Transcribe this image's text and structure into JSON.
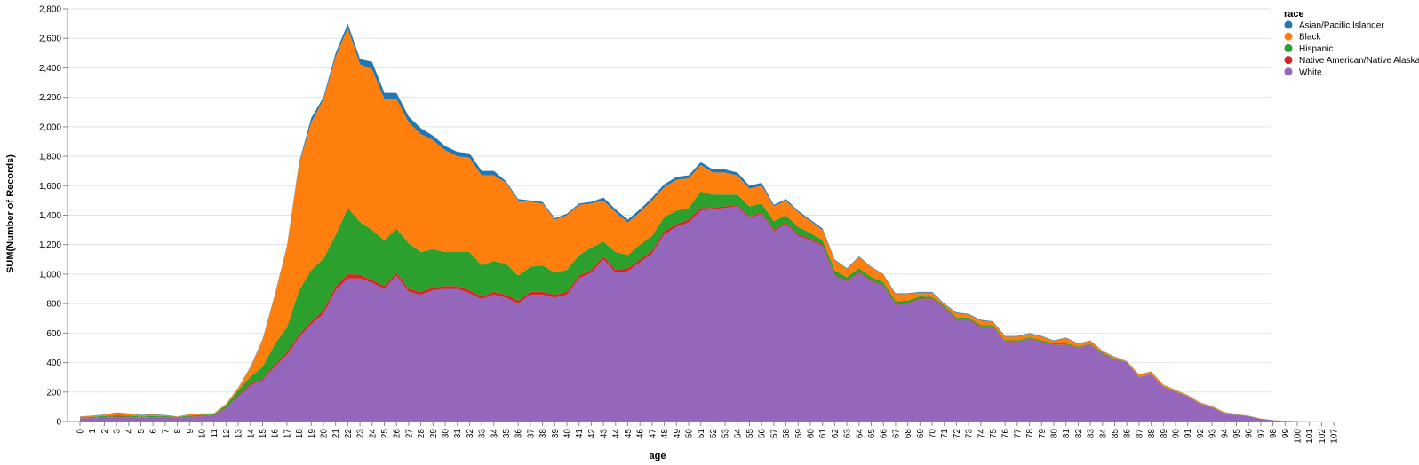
{
  "chart_data": {
    "type": "area",
    "stacked": true,
    "xlabel": "age",
    "ylabel": "SUM(Number of Records)",
    "ylim": [
      0,
      2800
    ],
    "yticks": [
      0,
      200,
      400,
      600,
      800,
      1000,
      1200,
      1400,
      1600,
      1800,
      2000,
      2200,
      2400,
      2600,
      2800
    ],
    "ytick_labels": [
      "0",
      "200",
      "400",
      "600",
      "800",
      "1,000",
      "1,200",
      "1,400",
      "1,600",
      "1,800",
      "2,000",
      "2,200",
      "2,400",
      "2,600",
      "2,800"
    ],
    "grid": true,
    "legend": {
      "title": "race",
      "placement": "top-right",
      "entries": [
        {
          "name": "Asian/Pacific Islander",
          "color": "#1f77b4"
        },
        {
          "name": "Black",
          "color": "#ff7f0e"
        },
        {
          "name": "Hispanic",
          "color": "#2ca02c"
        },
        {
          "name": "Native American/Native Alaskan",
          "color": "#d62728"
        },
        {
          "name": "White",
          "color": "#9467bd"
        }
      ]
    },
    "x": [
      "0",
      "1",
      "2",
      "3",
      "4",
      "5",
      "6",
      "7",
      "8",
      "9",
      "10",
      "11",
      "12",
      "13",
      "14",
      "15",
      "16",
      "17",
      "18",
      "19",
      "20",
      "21",
      "22",
      "23",
      "24",
      "25",
      "26",
      "27",
      "28",
      "29",
      "30",
      "31",
      "32",
      "33",
      "34",
      "35",
      "36",
      "37",
      "38",
      "39",
      "40",
      "41",
      "42",
      "43",
      "44",
      "45",
      "46",
      "47",
      "48",
      "49",
      "50",
      "51",
      "52",
      "53",
      "54",
      "55",
      "56",
      "57",
      "58",
      "59",
      "60",
      "61",
      "62",
      "63",
      "64",
      "65",
      "66",
      "67",
      "68",
      "69",
      "70",
      "71",
      "72",
      "73",
      "74",
      "75",
      "76",
      "77",
      "78",
      "79",
      "80",
      "81",
      "82",
      "83",
      "84",
      "85",
      "86",
      "87",
      "88",
      "89",
      "90",
      "91",
      "92",
      "93",
      "94",
      "95",
      "96",
      "97",
      "98",
      "99",
      "100",
      "101",
      "102",
      "107"
    ],
    "totals": [
      35,
      40,
      48,
      62,
      55,
      45,
      50,
      45,
      35,
      50,
      55,
      55,
      120,
      230,
      370,
      560,
      860,
      1190,
      1760,
      2060,
      2200,
      2500,
      2700,
      2460,
      2440,
      2230,
      2230,
      2070,
      1990,
      1940,
      1870,
      1830,
      1820,
      1700,
      1700,
      1630,
      1510,
      1500,
      1490,
      1380,
      1410,
      1480,
      1490,
      1520,
      1440,
      1370,
      1440,
      1520,
      1610,
      1660,
      1670,
      1760,
      1710,
      1710,
      1690,
      1600,
      1620,
      1470,
      1510,
      1430,
      1370,
      1310,
      1100,
      1040,
      1120,
      1050,
      1000,
      870,
      870,
      880,
      880,
      800,
      740,
      730,
      690,
      680,
      580,
      580,
      600,
      580,
      550,
      570,
      530,
      550,
      480,
      440,
      410,
      320,
      340,
      250,
      215,
      180,
      130,
      105,
      65,
      50,
      40,
      20,
      10,
      5,
      3,
      2,
      1,
      1
    ],
    "series": [
      {
        "name": "White",
        "values": [
          20,
          25,
          28,
          30,
          30,
          25,
          28,
          30,
          25,
          30,
          35,
          40,
          90,
          170,
          245,
          280,
          370,
          450,
          570,
          660,
          730,
          890,
          970,
          970,
          940,
          900,
          990,
          880,
          860,
          890,
          900,
          900,
          870,
          830,
          860,
          840,
          800,
          860,
          860,
          840,
          860,
          970,
          1010,
          1100,
          1010,
          1020,
          1080,
          1140,
          1270,
          1320,
          1350,
          1430,
          1440,
          1450,
          1460,
          1380,
          1410,
          1290,
          1340,
          1260,
          1230,
          1190,
          990,
          950,
          1010,
          950,
          920,
          790,
          800,
          830,
          830,
          770,
          690,
          690,
          640,
          640,
          540,
          540,
          560,
          540,
          520,
          520,
          500,
          520,
          460,
          420,
          400,
          300,
          320,
          235,
          200,
          170,
          120,
          95,
          55,
          45,
          35,
          18,
          8,
          4,
          2,
          1,
          1,
          1
        ]
      },
      {
        "name": "Native American/Native Alaskan",
        "values": [
          2,
          2,
          3,
          3,
          2,
          2,
          2,
          2,
          2,
          2,
          2,
          2,
          5,
          10,
          10,
          10,
          15,
          20,
          20,
          20,
          25,
          25,
          30,
          25,
          20,
          20,
          20,
          20,
          20,
          20,
          20,
          20,
          20,
          20,
          20,
          20,
          20,
          20,
          20,
          20,
          20,
          20,
          20,
          20,
          20,
          20,
          20,
          20,
          20,
          20,
          20,
          20,
          10,
          10,
          10,
          10,
          10,
          10,
          10,
          10,
          10,
          10,
          5,
          5,
          5,
          5,
          5,
          5,
          5,
          5,
          5,
          5,
          5,
          5,
          5,
          5,
          3,
          3,
          3,
          3,
          3,
          3,
          3,
          3,
          3,
          2,
          2,
          2,
          2,
          2,
          2,
          2,
          1,
          1,
          1,
          0,
          0,
          0,
          0,
          0,
          0,
          0,
          0,
          0
        ]
      },
      {
        "name": "Hispanic",
        "values": [
          5,
          5,
          7,
          10,
          8,
          7,
          7,
          6,
          4,
          8,
          8,
          6,
          15,
          30,
          50,
          80,
          140,
          170,
          300,
          350,
          350,
          350,
          450,
          360,
          340,
          310,
          300,
          310,
          270,
          260,
          230,
          230,
          260,
          210,
          210,
          210,
          170,
          170,
          180,
          150,
          150,
          140,
          150,
          100,
          120,
          90,
          100,
          100,
          100,
          90,
          80,
          110,
          90,
          80,
          70,
          70,
          60,
          60,
          50,
          50,
          40,
          30,
          30,
          25,
          25,
          25,
          20,
          20,
          15,
          15,
          10,
          10,
          10,
          10,
          10,
          10,
          8,
          8,
          8,
          8,
          8,
          8,
          5,
          5,
          5,
          5,
          2,
          2,
          2,
          2,
          2,
          2,
          2,
          2,
          2,
          2,
          2,
          1,
          1,
          0,
          0,
          0,
          0,
          0
        ]
      },
      {
        "name": "Black",
        "values": [
          6,
          6,
          8,
          15,
          12,
          8,
          10,
          5,
          3,
          8,
          8,
          5,
          8,
          18,
          60,
          185,
          330,
          545,
          860,
          1000,
          1080,
          1210,
          1220,
          1070,
          1090,
          960,
          880,
          820,
          800,
          740,
          690,
          650,
          640,
          610,
          580,
          550,
          510,
          440,
          420,
          360,
          370,
          340,
          300,
          280,
          270,
          220,
          220,
          240,
          200,
          210,
          200,
          180,
          150,
          150,
          130,
          120,
          120,
          100,
          100,
          100,
          80,
          70,
          70,
          55,
          75,
          65,
          50,
          50,
          45,
          25,
          30,
          10,
          30,
          20,
          30,
          20,
          25,
          25,
          25,
          25,
          15,
          35,
          20,
          20,
          10,
          10,
          5,
          15,
          15,
          10,
          10,
          5,
          6,
          6,
          6,
          2,
          2,
          1,
          1,
          1,
          1,
          1,
          0,
          0
        ]
      },
      {
        "name": "Asian/Pacific Islander",
        "values": [
          2,
          2,
          2,
          4,
          3,
          3,
          3,
          2,
          1,
          2,
          2,
          2,
          2,
          2,
          5,
          5,
          5,
          5,
          10,
          30,
          15,
          25,
          30,
          35,
          50,
          40,
          40,
          40,
          40,
          30,
          30,
          30,
          30,
          30,
          30,
          10,
          10,
          10,
          10,
          10,
          10,
          10,
          10,
          20,
          20,
          20,
          20,
          20,
          20,
          20,
          20,
          20,
          20,
          20,
          20,
          20,
          20,
          10,
          10,
          10,
          10,
          10,
          5,
          5,
          5,
          5,
          3,
          5,
          5,
          5,
          5,
          5,
          5,
          5,
          5,
          5,
          4,
          4,
          4,
          4,
          4,
          4,
          2,
          2,
          2,
          3,
          1,
          1,
          1,
          1,
          1,
          1,
          1,
          1,
          1,
          1,
          1,
          0,
          0,
          0,
          0,
          0,
          0,
          0
        ]
      }
    ]
  }
}
